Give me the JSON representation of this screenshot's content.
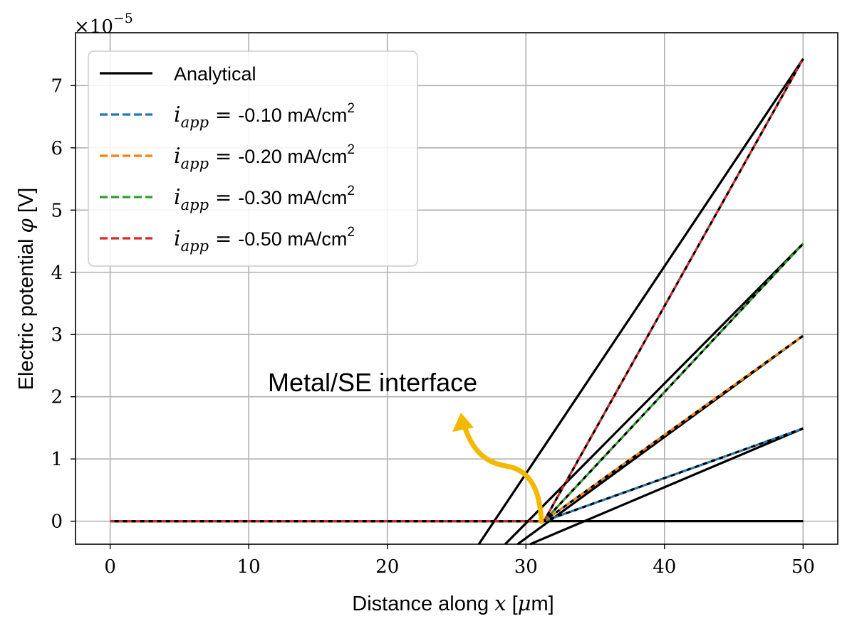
{
  "chart_data": {
    "type": "line",
    "title": "",
    "xlabel": "Distance along x [μm]",
    "xlabel_parts": {
      "prefix": "Distance along ",
      "var": "x",
      "open": " [",
      "mu": "μ",
      "suffix": "m]"
    },
    "ylabel": "Electric potential φ [V]",
    "ylabel_parts": {
      "prefix": "Electric potential ",
      "var": "φ",
      "suffix": " [V]"
    },
    "y_multiplier": {
      "base": "×10",
      "exponent": "−5"
    },
    "xlim": [
      -2.5,
      52.5
    ],
    "ylim": [
      -0.37,
      7.85
    ],
    "xticks": [
      0,
      10,
      20,
      30,
      40,
      50
    ],
    "yticks": [
      0,
      1,
      2,
      3,
      4,
      5,
      6,
      7
    ],
    "grid": true,
    "legend_position": "top-left",
    "interface_x": 31.3,
    "legend": [
      {
        "label": "Analytical",
        "color": "#000000",
        "style": "solid"
      },
      {
        "var": "i",
        "sub": "app",
        "op": " = ",
        "value": "-0.10 mA/cm",
        "sup": "2",
        "color": "#1f77b4",
        "style": "dashed"
      },
      {
        "var": "i",
        "sub": "app",
        "op": " = ",
        "value": "-0.20 mA/cm",
        "sup": "2",
        "color": "#ff7f0e",
        "style": "dashed"
      },
      {
        "var": "i",
        "sub": "app",
        "op": " = ",
        "value": "-0.30 mA/cm",
        "sup": "2",
        "color": "#2ca02c",
        "style": "dashed"
      },
      {
        "var": "i",
        "sub": "app",
        "op": " = ",
        "value": "-0.50 mA/cm",
        "sup": "2",
        "color": "#d62728",
        "style": "dashed"
      }
    ],
    "series": [
      {
        "name": "i_app = -0.10 mA/cm2",
        "color": "#1f77b4",
        "x": [
          0,
          31.3,
          50
        ],
        "y": [
          0,
          0,
          1.49
        ]
      },
      {
        "name": "i_app = -0.20 mA/cm2",
        "color": "#ff7f0e",
        "x": [
          0,
          31.3,
          50
        ],
        "y": [
          0,
          0,
          2.98
        ]
      },
      {
        "name": "i_app = -0.30 mA/cm2",
        "color": "#2ca02c",
        "x": [
          0,
          31.3,
          50
        ],
        "y": [
          0,
          0,
          4.46
        ]
      },
      {
        "name": "i_app = -0.50 mA/cm2",
        "color": "#d62728",
        "x": [
          0,
          31.3,
          50
        ],
        "y": [
          0,
          0,
          7.43
        ]
      }
    ],
    "analytical": {
      "color": "#000000",
      "flat": {
        "x": [
          0,
          50
        ],
        "y": [
          0,
          0
        ]
      },
      "lines": [
        {
          "x": [
            26.6,
            50
          ],
          "y": [
            -0.37,
            7.43
          ]
        },
        {
          "x": [
            28.5,
            50
          ],
          "y": [
            -0.37,
            4.46
          ]
        },
        {
          "x": [
            29.4,
            50
          ],
          "y": [
            -0.37,
            2.98
          ]
        },
        {
          "x": [
            30.3,
            50
          ],
          "y": [
            -0.37,
            1.49
          ]
        }
      ]
    },
    "annotation": {
      "text": "Metal/SE interface",
      "arrow_color": "#f5b800"
    }
  }
}
